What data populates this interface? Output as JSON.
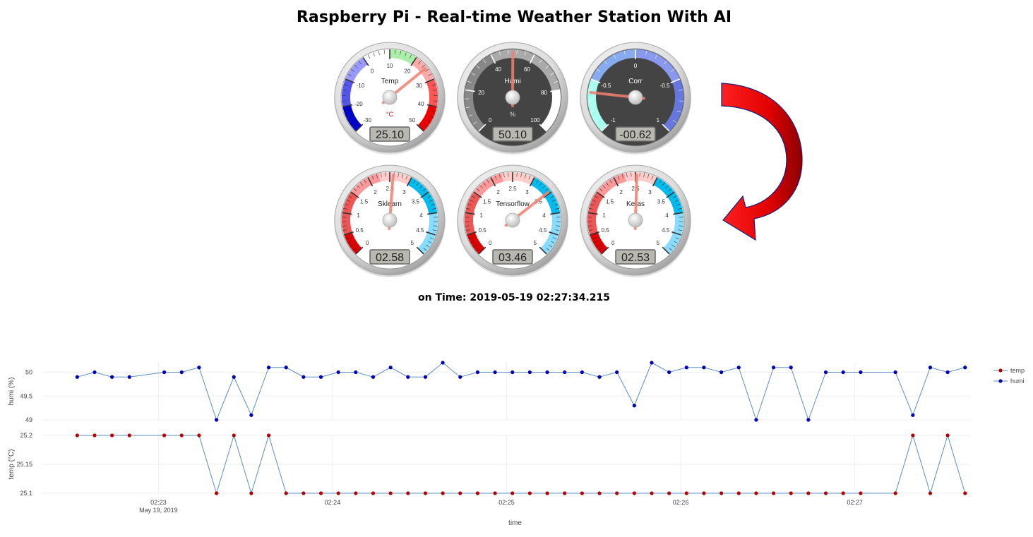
{
  "page_title": "Raspberry Pi - Real-time Weather Station With AI",
  "time_label": "on Time:",
  "time_value": "2019-05-19 02:27:34.215",
  "colors": {
    "temp_series": "#b50000",
    "humi_series": "#0000b5",
    "line": "#5b8ec5",
    "arrow": "#e01010"
  },
  "gauges": [
    {
      "label": "Temp",
      "unit": "°C",
      "min": -30,
      "max": 50,
      "value": 25.1,
      "display": "25.10",
      "dark": false,
      "ticks": [
        "-30",
        "-20",
        "-10",
        "0",
        "10",
        "20",
        "30",
        "40",
        "50"
      ]
    },
    {
      "label": "Humi",
      "unit": "%",
      "min": 0,
      "max": 100,
      "value": 50.1,
      "display": "50.10",
      "dark": true,
      "ticks": [
        "0",
        "20",
        "40",
        "60",
        "80",
        "100"
      ]
    },
    {
      "label": "Corr",
      "unit": "",
      "min": -1,
      "max": 1,
      "value": -0.62,
      "display": "-00.62",
      "dark": true,
      "ticks": [
        "-1",
        "-0.5",
        "0",
        "-0.5",
        "1"
      ]
    },
    {
      "label": "Sklearn",
      "unit": "",
      "min": 0,
      "max": 5,
      "value": 2.58,
      "display": "02.58",
      "dark": false,
      "ticks": [
        "0",
        "0.5",
        "1",
        "1.5",
        "2",
        "2.5",
        "3",
        "3.5",
        "4",
        "4.5",
        "5"
      ]
    },
    {
      "label": "Tensorflow",
      "unit": "",
      "min": 0,
      "max": 5,
      "value": 3.46,
      "display": "03.46",
      "dark": false,
      "ticks": [
        "0",
        "0.5",
        "1",
        "1.5",
        "2",
        "2.5",
        "3",
        "3.5",
        "4",
        "4.5",
        "5"
      ]
    },
    {
      "label": "Keras",
      "unit": "",
      "min": 0,
      "max": 5,
      "value": 2.53,
      "display": "02.53",
      "dark": false,
      "ticks": [
        "0",
        "0.5",
        "1",
        "1.5",
        "2",
        "2.5",
        "3",
        "3.5",
        "4",
        "4.5",
        "5"
      ]
    }
  ],
  "chart_data": {
    "type": "line",
    "xlabel": "time",
    "x_ticks": [
      "02:23",
      "02:24",
      "02:25",
      "02:26",
      "02:27"
    ],
    "x_sublabel": "May 19, 2019",
    "x_range": [
      "02:22:20",
      "02:27:40"
    ],
    "legend": [
      "temp",
      "humi"
    ],
    "legend_position": "top-right",
    "grid": true,
    "panels": [
      {
        "name": "humi",
        "ylabel": "humi (%)",
        "ylim": [
          49,
          50.2
        ],
        "yticks": [
          "50",
          "49.5",
          "49"
        ],
        "values": [
          49.9,
          50.0,
          49.9,
          49.9,
          50.0,
          50.0,
          50.1,
          49.0,
          49.9,
          49.1,
          50.1,
          50.1,
          49.9,
          49.9,
          50.0,
          50.0,
          49.9,
          50.1,
          49.9,
          49.9,
          50.2,
          49.9,
          50.0,
          50.0,
          50.0,
          50.0,
          50.0,
          50.0,
          50.0,
          49.9,
          50.0,
          49.3,
          50.2,
          50.0,
          50.1,
          50.1,
          50.0,
          50.1,
          49.0,
          50.1,
          50.1,
          49.0,
          50.0,
          50.0,
          50.0,
          50.0,
          49.1,
          50.1,
          50.0,
          50.1
        ]
      },
      {
        "name": "temp",
        "ylabel": "temp (°C)",
        "ylim": [
          25.1,
          25.2
        ],
        "yticks": [
          "25.2",
          "25.15",
          "25.1"
        ],
        "values": [
          25.2,
          25.2,
          25.2,
          25.2,
          25.2,
          25.2,
          25.2,
          25.1,
          25.2,
          25.1,
          25.2,
          25.1,
          25.1,
          25.1,
          25.1,
          25.1,
          25.1,
          25.1,
          25.1,
          25.1,
          25.1,
          25.1,
          25.1,
          25.1,
          25.1,
          25.1,
          25.1,
          25.1,
          25.1,
          25.1,
          25.1,
          25.1,
          25.1,
          25.1,
          25.1,
          25.1,
          25.1,
          25.1,
          25.1,
          25.1,
          25.1,
          25.1,
          25.1,
          25.1,
          25.1,
          25.1,
          25.2,
          25.1,
          25.2,
          25.1
        ]
      }
    ],
    "x_times": [
      "02:22:32",
      "02:22:38",
      "02:22:44",
      "02:22:50",
      "02:23:02",
      "02:23:08",
      "02:23:14",
      "02:23:20",
      "02:23:26",
      "02:23:32",
      "02:23:38",
      "02:23:44",
      "02:23:50",
      "02:23:56",
      "02:24:02",
      "02:24:08",
      "02:24:14",
      "02:24:20",
      "02:24:26",
      "02:24:32",
      "02:24:38",
      "02:24:44",
      "02:24:50",
      "02:24:56",
      "02:25:02",
      "02:25:08",
      "02:25:14",
      "02:25:20",
      "02:25:26",
      "02:25:32",
      "02:25:38",
      "02:25:44",
      "02:25:50",
      "02:25:56",
      "02:26:02",
      "02:26:08",
      "02:26:14",
      "02:26:20",
      "02:26:26",
      "02:26:32",
      "02:26:38",
      "02:26:44",
      "02:26:50",
      "02:26:56",
      "02:27:02",
      "02:27:14",
      "02:27:20",
      "02:27:26",
      "02:27:32",
      "02:27:38"
    ]
  }
}
